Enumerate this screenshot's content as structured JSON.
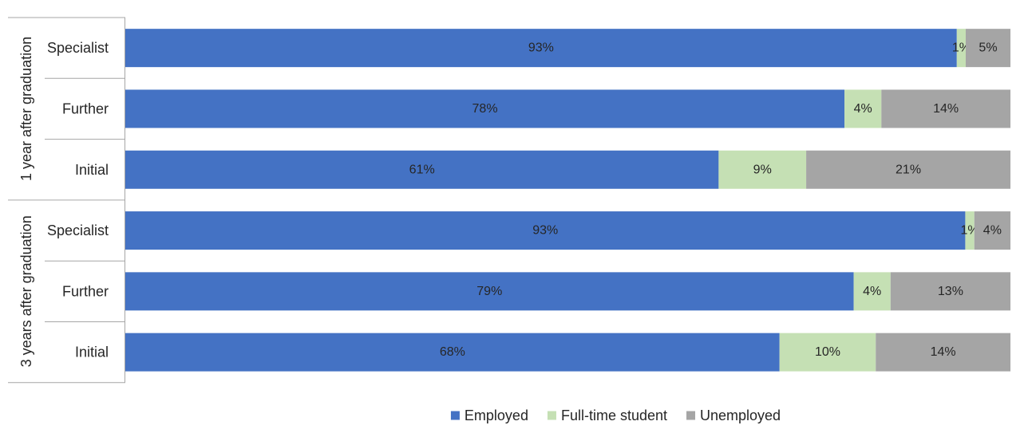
{
  "chart_data": {
    "type": "bar",
    "orientation": "horizontal",
    "stacked": "100%",
    "title": "",
    "groups": [
      {
        "label": "1 year after graduation",
        "categories": [
          "Specialist",
          "Further",
          "Initial"
        ]
      },
      {
        "label": "3 years after graduation",
        "categories": [
          "Specialist",
          "Further",
          "Initial"
        ]
      }
    ],
    "series": [
      {
        "name": "Employed",
        "color": "#4472C4",
        "values": [
          93,
          78,
          61,
          93,
          79,
          68
        ]
      },
      {
        "name": "Full-time student",
        "color": "#C5E0B4",
        "values": [
          1,
          4,
          9,
          1,
          4,
          10
        ]
      },
      {
        "name": "Unemployed",
        "color": "#A5A5A5",
        "values": [
          5,
          14,
          21,
          4,
          13,
          14
        ]
      }
    ],
    "value_suffix": "%",
    "legend_position": "bottom",
    "grid": false
  }
}
